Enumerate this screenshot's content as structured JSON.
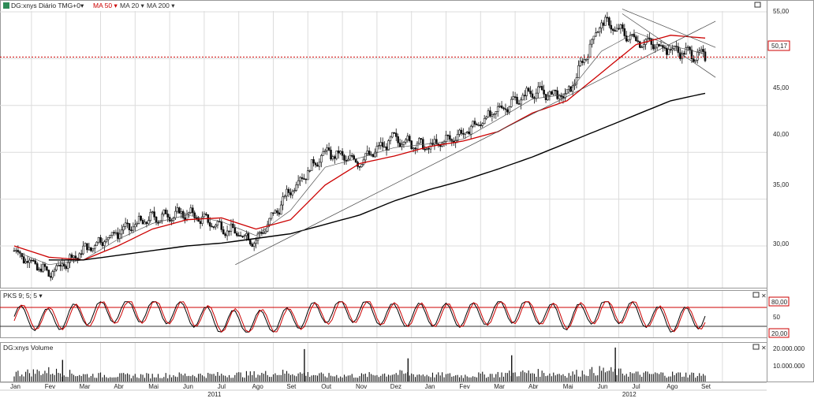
{
  "price_panel": {
    "title": "DG:xnys Diário TMG",
    "title_suffix": "+0",
    "legend": [
      {
        "label": "MA 50",
        "color": "#cc0000"
      },
      {
        "label": "MA 20",
        "color": "#333333"
      },
      {
        "label": "MA 200",
        "color": "#333333"
      }
    ],
    "last_price_label": "50,17",
    "y_ticks": [
      "55,00",
      "50,00",
      "45,00",
      "40,00",
      "35,00",
      "30,00"
    ]
  },
  "stoch_panel": {
    "title": "PKS 9; 5; 5",
    "upper_band": "80,00",
    "mid_label": "50",
    "lower_band": "20,00"
  },
  "volume_panel": {
    "title": "DG:xnys Volume",
    "y_ticks": [
      "20.000.000",
      "10.000.000"
    ]
  },
  "x_axis": {
    "months": [
      "Jan",
      "Fev",
      "Mar",
      "Abr",
      "Mai",
      "Jun",
      "Jul",
      "Ago",
      "Set",
      "Out",
      "Nov",
      "Dez",
      "Jan",
      "Fev",
      "Mar",
      "Abr",
      "Mai",
      "Jun",
      "Jul",
      "Ago",
      "Set"
    ],
    "years": [
      "2011",
      "2012"
    ]
  },
  "colors": {
    "candle": "#111111",
    "ma50": "#cc0000",
    "ma200": "#000000",
    "stoch_k": "#000000",
    "stoch_d": "#cc0000",
    "level": "#cc0000",
    "grid": "#dcdcdc"
  },
  "chart_data": [
    {
      "type": "candlestick",
      "title": "DG:xnys Diário TMG",
      "x": [
        "2011-01",
        "2011-02",
        "2011-03",
        "2011-04",
        "2011-05",
        "2011-06",
        "2011-07",
        "2011-08",
        "2011-09",
        "2011-10",
        "2011-11",
        "2011-12",
        "2012-01",
        "2012-02",
        "2012-03",
        "2012-04",
        "2012-05",
        "2012-06",
        "2012-07",
        "2012-08",
        "2012-09"
      ],
      "series": [
        {
          "name": "DG:xnys",
          "values": [
            29.5,
            27.0,
            29.5,
            31.5,
            33.0,
            33.5,
            32.0,
            30.5,
            36.0,
            40.0,
            39.0,
            41.5,
            40.5,
            42.0,
            44.5,
            46.5,
            46.0,
            54.0,
            52.0,
            51.0,
            50.17
          ]
        },
        {
          "name": "MA 50",
          "values": [
            30.0,
            28.8,
            28.5,
            30.0,
            31.8,
            32.8,
            33.0,
            31.8,
            32.8,
            36.5,
            38.8,
            39.6,
            40.6,
            41.2,
            42.2,
            44.2,
            45.5,
            48.5,
            51.5,
            52.5,
            52.2
          ]
        },
        {
          "name": "MA 200",
          "values": [
            null,
            null,
            28.5,
            29.0,
            29.5,
            30.0,
            30.3,
            30.8,
            31.3,
            32.3,
            33.3,
            34.8,
            36.0,
            37.0,
            38.2,
            39.5,
            41.0,
            42.5,
            44.0,
            45.5,
            46.3
          ]
        }
      ],
      "trendlines": [
        {
          "from": [
            "2011-07",
            28.0
          ],
          "to": [
            "2012-09",
            54.0
          ]
        },
        {
          "from": [
            "2012-06",
            55.3
          ],
          "to": [
            "2012-09",
            51.2
          ]
        },
        {
          "from": [
            "2012-06",
            54.8
          ],
          "to": [
            "2012-09",
            48.0
          ]
        }
      ],
      "ylim": [
        25.5,
        56.0
      ],
      "grid": true
    },
    {
      "type": "line",
      "title": "PKS 9; 5; 5",
      "series": [
        {
          "name": "K",
          "values": [
            52,
            28,
            70,
            90,
            88,
            70,
            20,
            15,
            35,
            86,
            90,
            60,
            65,
            58,
            82,
            88,
            40,
            94,
            70,
            25,
            55
          ]
        },
        {
          "name": "D",
          "values": [
            58,
            35,
            60,
            84,
            86,
            75,
            30,
            20,
            30,
            78,
            88,
            65,
            62,
            60,
            78,
            86,
            48,
            90,
            76,
            30,
            48
          ]
        }
      ],
      "levels": [
        80,
        20
      ],
      "ylim": [
        0,
        100
      ]
    },
    {
      "type": "bar",
      "title": "DG:xnys Volume",
      "series": [
        {
          "name": "Volume",
          "values": [
            5500000,
            7000000,
            4500000,
            4000000,
            4000000,
            4500000,
            4500000,
            5000000,
            6000000,
            4000000,
            4000000,
            5500000,
            4500000,
            4000000,
            5000000,
            6000000,
            5000000,
            7500000,
            5000000,
            5000000,
            4500000
          ]
        }
      ],
      "peaks": [
        {
          "x": "2011-02",
          "value": 14000000
        },
        {
          "x": "2011-09",
          "value": 21000000
        },
        {
          "x": "2011-12",
          "value": 15000000
        },
        {
          "x": "2012-03",
          "value": 17000000
        },
        {
          "x": "2012-06",
          "value": 22000000
        }
      ],
      "ylim": [
        0,
        24000000
      ]
    }
  ]
}
